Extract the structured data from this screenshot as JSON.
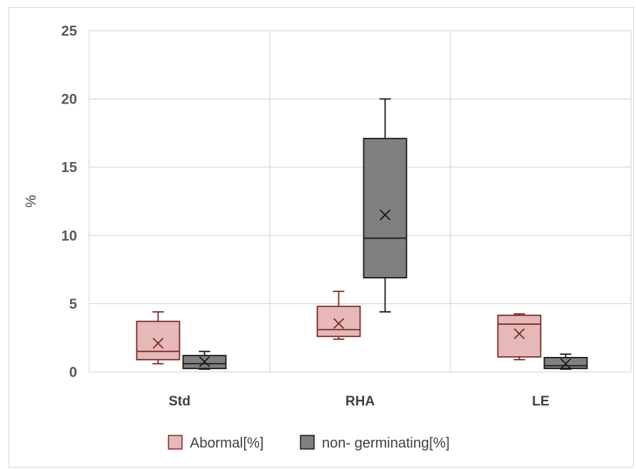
{
  "chart_data": {
    "type": "box",
    "ylabel": "%",
    "ylim": [
      0,
      25
    ],
    "yticks": [
      "0",
      "5",
      "10",
      "15",
      "20",
      "25"
    ],
    "categories": [
      "Std",
      "RHA",
      "LE"
    ],
    "grid": true,
    "legend_position": "bottom",
    "series": [
      {
        "name": "Abormal[%]",
        "fill": "#e6b9b8",
        "stroke": "#7b2b2b",
        "boxes": [
          {
            "min": 0.6,
            "q1": 0.9,
            "median": 1.5,
            "q3": 3.7,
            "max": 4.4,
            "mean": 2.1
          },
          {
            "min": 2.4,
            "q1": 2.6,
            "median": 3.1,
            "q3": 4.8,
            "max": 5.9,
            "mean": 3.55
          },
          {
            "min": 0.9,
            "q1": 1.1,
            "median": 3.5,
            "q3": 4.15,
            "max": 4.25,
            "mean": 2.8
          }
        ]
      },
      {
        "name": "non- germinating[%]",
        "fill": "#808080",
        "stroke": "#1a1a1a",
        "boxes": [
          {
            "min": 0.2,
            "q1": 0.25,
            "median": 0.6,
            "q3": 1.2,
            "max": 1.5,
            "mean": 0.75
          },
          {
            "min": 4.4,
            "q1": 6.9,
            "median": 9.8,
            "q3": 17.1,
            "max": 20.0,
            "mean": 11.5
          },
          {
            "min": 0.2,
            "q1": 0.25,
            "median": 0.45,
            "q3": 1.05,
            "max": 1.3,
            "mean": 0.6
          }
        ]
      }
    ]
  }
}
